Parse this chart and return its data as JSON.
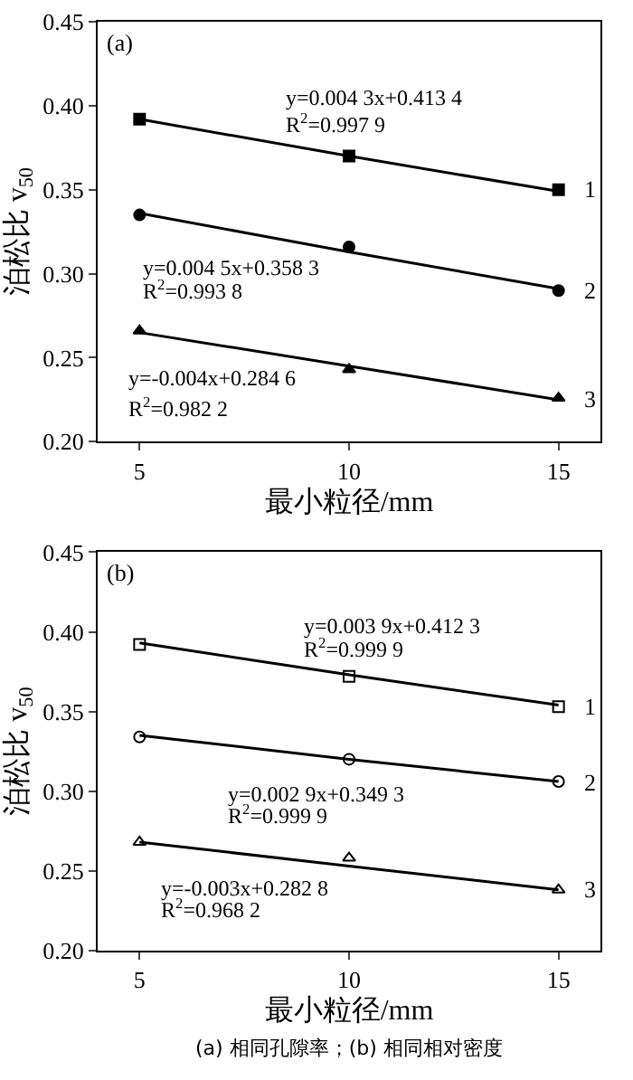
{
  "chart_data": [
    {
      "type": "scatter",
      "title": "(a)",
      "xlabel": "最小粒径/mm",
      "ylabel": "泊松比 v$_{50}$",
      "x": [
        5,
        10,
        15
      ],
      "xlim": [
        4,
        16
      ],
      "xticks": [
        5,
        10,
        15
      ],
      "ylim": [
        0.2,
        0.45
      ],
      "yticks": [
        {
          "value": 0.2,
          "label": "0.20"
        },
        {
          "value": 0.25,
          "label": "0.25"
        },
        {
          "value": 0.3,
          "label": "0.30"
        },
        {
          "value": 0.35,
          "label": "0.35"
        },
        {
          "value": 0.4,
          "label": "0.40"
        },
        {
          "value": 0.45,
          "label": "0.45"
        }
      ],
      "series": [
        {
          "color": "#000000",
          "marker": "square",
          "values": [
            0.392,
            0.37,
            0.35
          ]
        },
        {
          "color": "#000000",
          "marker": "circle",
          "values": [
            0.335,
            0.316,
            0.29
          ]
        },
        {
          "color": "#000000",
          "marker": "triangle",
          "values": [
            0.266,
            0.243,
            0.226
          ]
        },
        {
          "type": "line",
          "color": "#000000",
          "marker": "none",
          "line_style": "solid",
          "values": [
            0.392,
            0.37,
            0.349
          ]
        },
        {
          "type": "line",
          "color": "#000000",
          "marker": "none",
          "line_style": "solid",
          "values": [
            0.336,
            0.313,
            0.291
          ]
        },
        {
          "type": "line",
          "color": "#000000",
          "marker": "none",
          "line_style": "solid",
          "values": [
            0.265,
            0.245,
            0.225
          ]
        }
      ],
      "annotations": [
        "y=0.004 3x+0.413 4",
        "R$^{2}$=0.997 9",
        "y=0.004 5x+0.358 3",
        "R$^{2}$=0.993 8",
        "y=-0.004x+0.284 6",
        "R$^{2}$=0.982 2",
        "1",
        "2",
        "3"
      ]
    },
    {
      "type": "scatter",
      "title": "(b)",
      "xlabel": "最小粒径/mm",
      "ylabel": "泊松比 v$_{50}$",
      "x": [
        5,
        10,
        15
      ],
      "xlim": [
        4,
        16
      ],
      "xticks": [
        5,
        10,
        15
      ],
      "ylim": [
        0.2,
        0.45
      ],
      "yticks": [
        {
          "value": 0.2,
          "label": "0.20"
        },
        {
          "value": 0.25,
          "label": "0.25"
        },
        {
          "value": 0.3,
          "label": "0.30"
        },
        {
          "value": 0.35,
          "label": "0.35"
        },
        {
          "value": 0.4,
          "label": "0.40"
        },
        {
          "value": 0.45,
          "label": "0.45"
        }
      ],
      "series": [
        {
          "color": "#000000",
          "marker": "square-open",
          "values": [
            0.392,
            0.372,
            0.353
          ]
        },
        {
          "color": "#000000",
          "marker": "circle-open",
          "values": [
            0.334,
            0.32,
            0.306
          ]
        },
        {
          "color": "#000000",
          "marker": "triangle-open",
          "values": [
            0.268,
            0.258,
            0.238
          ]
        },
        {
          "type": "line",
          "color": "#000000",
          "marker": "none",
          "line_style": "solid",
          "values": [
            0.393,
            0.373,
            0.354
          ]
        },
        {
          "type": "line",
          "color": "#000000",
          "marker": "none",
          "line_style": "solid",
          "values": [
            0.335,
            0.32,
            0.306
          ]
        },
        {
          "type": "line",
          "color": "#000000",
          "marker": "none",
          "line_style": "solid",
          "values": [
            0.268,
            0.253,
            0.238
          ]
        }
      ],
      "annotations": [
        "y=0.003 9x+0.412 3",
        "R$^{2}$=0.999 9",
        "y=0.002 9x+0.349 3",
        "R$^{2}$=0.999 9",
        "y=-0.003x+0.282 8",
        "R$^{2}$=0.968 2",
        "1",
        "2",
        "3",
        "(a) 相同孔隙率；(b) 相同相对密度"
      ]
    }
  ]
}
